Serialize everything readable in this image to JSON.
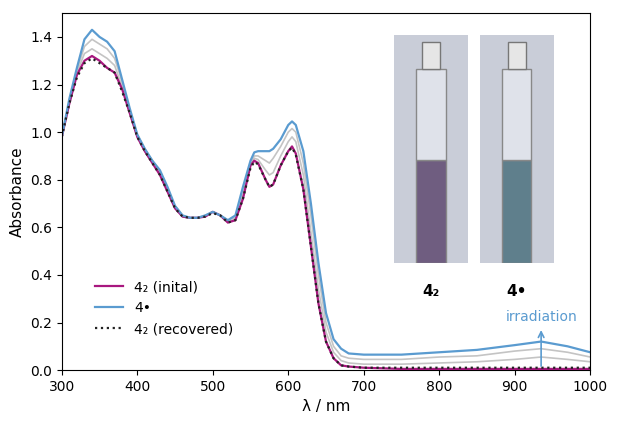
{
  "chart_data": {
    "type": "line",
    "x_label": "λ / nm",
    "y_label": "Absorbance",
    "x": [
      300,
      310,
      320,
      330,
      340,
      350,
      360,
      370,
      380,
      390,
      400,
      410,
      420,
      430,
      440,
      450,
      460,
      470,
      480,
      490,
      500,
      510,
      520,
      530,
      540,
      550,
      555,
      560,
      570,
      575,
      580,
      590,
      600,
      605,
      610,
      620,
      630,
      640,
      650,
      660,
      670,
      680,
      700,
      750,
      800,
      850,
      900,
      935,
      970,
      1000
    ],
    "series": [
      {
        "values": [
          0.98,
          1.12,
          1.25,
          1.33,
          1.35,
          1.33,
          1.31,
          1.28,
          1.19,
          1.08,
          0.98,
          0.92,
          0.87,
          0.83,
          0.76,
          0.68,
          0.645,
          0.64,
          0.64,
          0.645,
          0.665,
          0.65,
          0.62,
          0.635,
          0.74,
          0.87,
          0.89,
          0.885,
          0.84,
          0.82,
          0.83,
          0.9,
          0.96,
          0.98,
          0.96,
          0.82,
          0.58,
          0.34,
          0.16,
          0.075,
          0.04,
          0.03,
          0.025,
          0.025,
          0.03,
          0.035,
          0.045,
          0.055,
          0.045,
          0.035
        ],
        "color": "#c4c4c4",
        "line_style": "solid"
      },
      {
        "values": [
          0.98,
          1.13,
          1.26,
          1.36,
          1.39,
          1.37,
          1.35,
          1.31,
          1.21,
          1.09,
          0.99,
          0.93,
          0.88,
          0.83,
          0.76,
          0.69,
          0.65,
          0.64,
          0.64,
          0.65,
          0.665,
          0.65,
          0.63,
          0.64,
          0.75,
          0.87,
          0.9,
          0.9,
          0.88,
          0.87,
          0.89,
          0.94,
          1.0,
          1.015,
          1.0,
          0.87,
          0.65,
          0.4,
          0.2,
          0.1,
          0.06,
          0.05,
          0.045,
          0.045,
          0.055,
          0.06,
          0.08,
          0.09,
          0.075,
          0.055
        ],
        "color": "#c4c4c4",
        "line_style": "solid"
      },
      {
        "name": "4₂ (inital)",
        "color": "#a8177f",
        "line_style": "solid",
        "values": [
          0.98,
          1.12,
          1.24,
          1.3,
          1.32,
          1.3,
          1.27,
          1.25,
          1.18,
          1.08,
          0.98,
          0.92,
          0.87,
          0.82,
          0.75,
          0.68,
          0.645,
          0.64,
          0.64,
          0.645,
          0.665,
          0.65,
          0.62,
          0.63,
          0.72,
          0.86,
          0.88,
          0.87,
          0.8,
          0.77,
          0.78,
          0.86,
          0.92,
          0.94,
          0.91,
          0.76,
          0.52,
          0.28,
          0.12,
          0.05,
          0.02,
          0.015,
          0.01,
          0.005,
          0.005,
          0.005,
          0.005,
          0.005,
          0.005,
          0.005
        ]
      },
      {
        "name": "4•",
        "color": "#5a9bd0",
        "line_style": "solid",
        "values": [
          0.98,
          1.14,
          1.27,
          1.39,
          1.43,
          1.4,
          1.38,
          1.34,
          1.22,
          1.1,
          0.99,
          0.93,
          0.88,
          0.84,
          0.77,
          0.69,
          0.65,
          0.64,
          0.64,
          0.65,
          0.665,
          0.65,
          0.63,
          0.65,
          0.77,
          0.88,
          0.915,
          0.92,
          0.92,
          0.92,
          0.93,
          0.97,
          1.03,
          1.045,
          1.03,
          0.92,
          0.7,
          0.45,
          0.24,
          0.13,
          0.09,
          0.07,
          0.065,
          0.065,
          0.075,
          0.085,
          0.105,
          0.12,
          0.1,
          0.075
        ]
      },
      {
        "name": "4₂ (recovered)",
        "color": "#222222",
        "line_style": "dotted",
        "values": [
          0.98,
          1.12,
          1.23,
          1.29,
          1.31,
          1.29,
          1.27,
          1.25,
          1.17,
          1.08,
          0.98,
          0.92,
          0.87,
          0.82,
          0.75,
          0.68,
          0.645,
          0.64,
          0.64,
          0.645,
          0.66,
          0.65,
          0.62,
          0.63,
          0.72,
          0.85,
          0.875,
          0.865,
          0.8,
          0.77,
          0.78,
          0.86,
          0.92,
          0.935,
          0.905,
          0.76,
          0.52,
          0.28,
          0.12,
          0.05,
          0.02,
          0.015,
          0.01,
          0.01,
          0.01,
          0.01,
          0.01,
          0.01,
          0.01,
          0.01
        ]
      }
    ],
    "xlim": [
      300,
      1000
    ],
    "xticks": [
      300,
      400,
      500,
      600,
      700,
      800,
      900,
      1000
    ],
    "ylim": [
      0,
      1.5
    ],
    "yticks": [
      0.0,
      0.2,
      0.4,
      0.6,
      0.8,
      1.0,
      1.2,
      1.4
    ],
    "legend": "lower left",
    "annotations": [
      {
        "text": "irradiation",
        "x": 935,
        "color": "#5a9bd0"
      }
    ],
    "insets": [
      {
        "label": "4₂",
        "color": "#6f5d80"
      },
      {
        "label": "4•",
        "color": "#5f7f8c"
      }
    ]
  }
}
